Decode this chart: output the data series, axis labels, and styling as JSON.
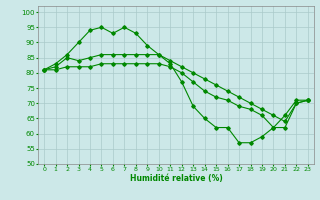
{
  "xlabel": "Humidité relative (%)",
  "bg_color": "#cce8e8",
  "grid_color": "#aacaca",
  "line_color": "#008800",
  "ylim": [
    50,
    102
  ],
  "xlim": [
    -0.5,
    23.5
  ],
  "yticks": [
    50,
    55,
    60,
    65,
    70,
    75,
    80,
    85,
    90,
    95,
    100
  ],
  "xticks": [
    0,
    1,
    2,
    3,
    4,
    5,
    6,
    7,
    8,
    9,
    10,
    11,
    12,
    13,
    14,
    15,
    16,
    17,
    18,
    19,
    20,
    21,
    22,
    23
  ],
  "series": [
    [
      81,
      83,
      86,
      90,
      94,
      95,
      93,
      95,
      93,
      89,
      86,
      83,
      77,
      69,
      65,
      62,
      62,
      57,
      57,
      59,
      62,
      66,
      71,
      71
    ],
    [
      81,
      82,
      85,
      84,
      85,
      86,
      86,
      86,
      86,
      86,
      86,
      84,
      82,
      80,
      78,
      76,
      74,
      72,
      70,
      68,
      66,
      64,
      70,
      71
    ],
    [
      81,
      81,
      82,
      82,
      82,
      83,
      83,
      83,
      83,
      83,
      83,
      82,
      80,
      77,
      74,
      72,
      71,
      69,
      68,
      66,
      62,
      62,
      70,
      71
    ]
  ]
}
